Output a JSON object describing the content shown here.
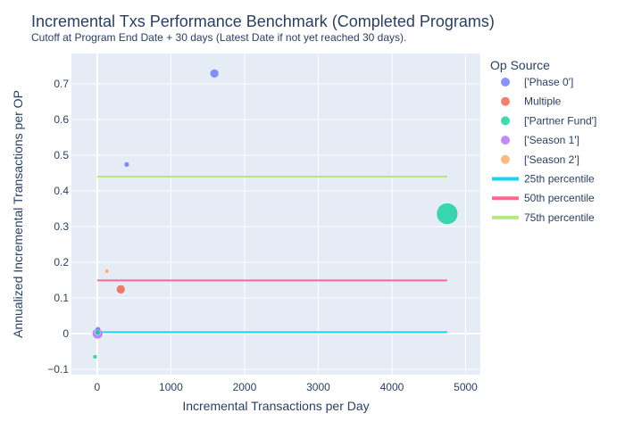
{
  "chart_data": {
    "type": "scatter",
    "title": "Incremental Txs Performance Benchmark (Completed Programs)",
    "subtitle": "Cutoff at Program End Date + 30 days (Latest Date if not yet reached 30 days).",
    "xlabel": "Incremental Transactions per Day",
    "ylabel": "Annualized Incremental Transactions per OP",
    "xlim": [
      -350,
      5200
    ],
    "ylim": [
      -0.115,
      0.785
    ],
    "x_ticks": [
      0,
      1000,
      2000,
      3000,
      4000,
      5000
    ],
    "y_ticks": [
      -0.1,
      0,
      0.1,
      0.2,
      0.3,
      0.4,
      0.5,
      0.6,
      0.7
    ],
    "grid": true,
    "legend": {
      "title": "Op Source",
      "placement": "right",
      "entries": [
        {
          "label": "['Phase 0']",
          "kind": "marker",
          "color": "#636efa"
        },
        {
          "label": "Multiple",
          "kind": "marker",
          "color": "#EF553B"
        },
        {
          "label": "['Partner Fund']",
          "kind": "marker",
          "color": "#00cc96"
        },
        {
          "label": "['Season 1']",
          "kind": "marker",
          "color": "#ab63fa"
        },
        {
          "label": "['Season 2']",
          "kind": "marker",
          "color": "#FFA15A"
        },
        {
          "label": "25th percentile",
          "kind": "line",
          "color": "#19d3f3"
        },
        {
          "label": "50th percentile",
          "kind": "line",
          "color": "#FF6692"
        },
        {
          "label": "75th percentile",
          "kind": "line",
          "color": "#B6E880"
        }
      ]
    },
    "series": [
      {
        "name": "['Phase 0']",
        "color": "#636efa",
        "points": [
          {
            "x": 1590,
            "y": 0.729,
            "size": 5
          },
          {
            "x": 400,
            "y": 0.474,
            "size": 3
          },
          {
            "x": 10,
            "y": 0.012,
            "size": 3
          }
        ]
      },
      {
        "name": "Multiple",
        "color": "#EF553B",
        "points": [
          {
            "x": 320,
            "y": 0.124,
            "size": 5
          }
        ]
      },
      {
        "name": "['Partner Fund']",
        "color": "#00cc96",
        "points": [
          {
            "x": 4750,
            "y": 0.336,
            "size": 12
          },
          {
            "x": -30,
            "y": -0.065,
            "size": 2.5
          },
          {
            "x": 5,
            "y": 0.003,
            "size": 3
          }
        ]
      },
      {
        "name": "['Season 1']",
        "color": "#ab63fa",
        "points": [
          {
            "x": 5,
            "y": 0.0,
            "size": 6
          }
        ]
      },
      {
        "name": "['Season 2']",
        "color": "#FFA15A",
        "points": [
          {
            "x": 130,
            "y": 0.175,
            "size": 2.5
          }
        ]
      }
    ],
    "reference_lines": [
      {
        "name": "25th percentile",
        "color": "#19d3f3",
        "y": 0.004,
        "x_range": [
          0,
          4750
        ]
      },
      {
        "name": "50th percentile",
        "color": "#FF6692",
        "y": 0.149,
        "x_range": [
          0,
          4750
        ]
      },
      {
        "name": "75th percentile",
        "color": "#B6E880",
        "y": 0.44,
        "x_range": [
          0,
          4750
        ]
      }
    ],
    "colors": {
      "plot_bg": "#e5ecf6",
      "grid": "#ffffff",
      "text": "#2a3f5f"
    }
  }
}
